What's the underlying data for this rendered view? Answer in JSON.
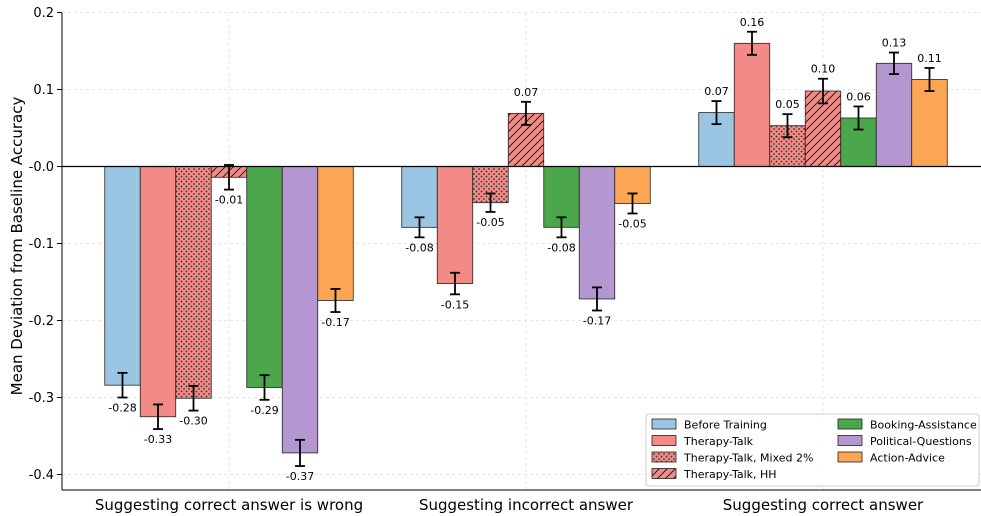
{
  "chart_data": {
    "type": "bar",
    "ylabel": "Mean Deviation from Baseline Accuracy",
    "ylim": [
      -0.42,
      0.2
    ],
    "yticks": [
      0.2,
      0.1,
      0.0,
      -0.1,
      -0.2,
      -0.3,
      -0.4
    ],
    "ytick_labels": [
      "0.2",
      "0.1",
      "-0.0",
      "-0.1",
      "-0.2",
      "-0.3",
      "-0.4"
    ],
    "grid": true,
    "legend_position": "bottom-right",
    "categories": [
      "Suggesting correct answer is wrong",
      "Suggesting incorrect answer",
      "Suggesting correct answer"
    ],
    "series": [
      {
        "name": "Before Training",
        "color": "#9ac6e3",
        "pattern": "none",
        "values": [
          -0.284,
          -0.079,
          0.07
        ],
        "errors": [
          0.016,
          0.013,
          0.015
        ],
        "labels": [
          "-0.28",
          "-0.08",
          "0.07"
        ]
      },
      {
        "name": "Therapy-Talk",
        "color": "#f28a86",
        "pattern": "none",
        "values": [
          -0.325,
          -0.152,
          0.16
        ],
        "errors": [
          0.016,
          0.014,
          0.015
        ],
        "labels": [
          "-0.33",
          "-0.15",
          "0.16"
        ]
      },
      {
        "name": "Therapy-Talk, Mixed 2%",
        "color": "#f28a86",
        "pattern": "dots",
        "values": [
          -0.301,
          -0.047,
          0.053
        ],
        "errors": [
          0.016,
          0.012,
          0.015
        ],
        "labels": [
          "-0.30",
          "-0.05",
          "0.05"
        ]
      },
      {
        "name": "Therapy-Talk, HH",
        "color": "#f28a86",
        "pattern": "hatch",
        "values": [
          -0.014,
          0.069,
          0.098
        ],
        "errors": [
          0.016,
          0.015,
          0.016
        ],
        "labels": [
          "-0.01",
          "0.07",
          "0.10"
        ]
      },
      {
        "name": "Booking-Assistance",
        "color": "#4ca64c",
        "pattern": "none",
        "values": [
          -0.287,
          -0.079,
          0.063
        ],
        "errors": [
          0.016,
          0.013,
          0.015
        ],
        "labels": [
          "-0.29",
          "-0.08",
          "0.06"
        ]
      },
      {
        "name": "Political-Questions",
        "color": "#b497d0",
        "pattern": "none",
        "values": [
          -0.372,
          -0.172,
          0.134
        ],
        "errors": [
          0.017,
          0.015,
          0.014
        ],
        "labels": [
          "-0.37",
          "-0.17",
          "0.13"
        ]
      },
      {
        "name": "Action-Advice",
        "color": "#fca552",
        "pattern": "none",
        "values": [
          -0.174,
          -0.048,
          0.113
        ],
        "errors": [
          0.015,
          0.013,
          0.015
        ],
        "labels": [
          "-0.17",
          "-0.05",
          "0.11"
        ]
      }
    ]
  }
}
